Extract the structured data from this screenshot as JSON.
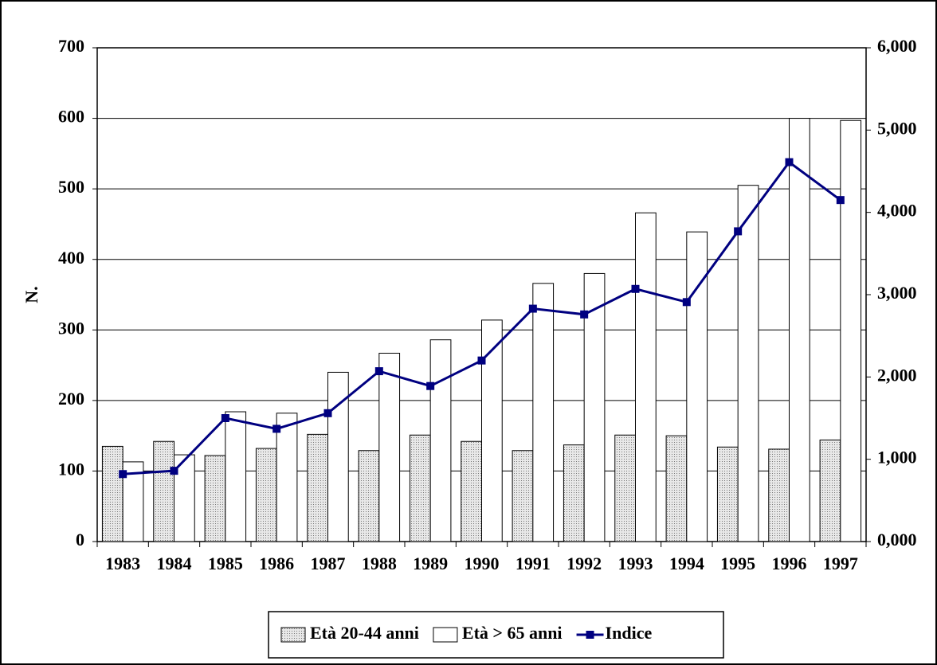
{
  "chart_data": {
    "type": "bar_line",
    "y_label": "N.",
    "categories": [
      "1983",
      "1984",
      "1985",
      "1986",
      "1987",
      "1988",
      "1989",
      "1990",
      "1991",
      "1992",
      "1993",
      "1994",
      "1995",
      "1996",
      "1997"
    ],
    "series": [
      {
        "name": "Età 20-44 anni",
        "type": "bar",
        "color": "#c8c8c8",
        "values": [
          135,
          142,
          122,
          132,
          152,
          129,
          151,
          142,
          129,
          137,
          151,
          150,
          134,
          131,
          144
        ]
      },
      {
        "name": "Età > 65 anni",
        "type": "bar",
        "color": "#ffffff",
        "values": [
          113,
          123,
          184,
          182,
          240,
          267,
          286,
          314,
          366,
          380,
          466,
          439,
          505,
          600,
          597
        ]
      },
      {
        "name": "Indice",
        "type": "line",
        "axis": "y2",
        "color": "#000080",
        "values": [
          0.82,
          0.86,
          1.5,
          1.37,
          1.56,
          2.07,
          1.89,
          2.2,
          2.83,
          2.76,
          3.07,
          2.91,
          3.77,
          4.61,
          4.15
        ]
      }
    ],
    "ylim": [
      0,
      700
    ],
    "yticks": [
      0,
      100,
      200,
      300,
      400,
      500,
      600,
      700
    ],
    "y2lim": [
      0,
      6
    ],
    "y2ticks": [
      {
        "value": 0,
        "label": "0,000"
      },
      {
        "value": 1,
        "label": "1,000"
      },
      {
        "value": 2,
        "label": "2,000"
      },
      {
        "value": 3,
        "label": "3,000"
      },
      {
        "value": 4,
        "label": "4,000"
      },
      {
        "value": 5,
        "label": "5,000"
      },
      {
        "value": 6,
        "label": "6,000"
      }
    ],
    "grid": true,
    "legend": "bottom"
  }
}
